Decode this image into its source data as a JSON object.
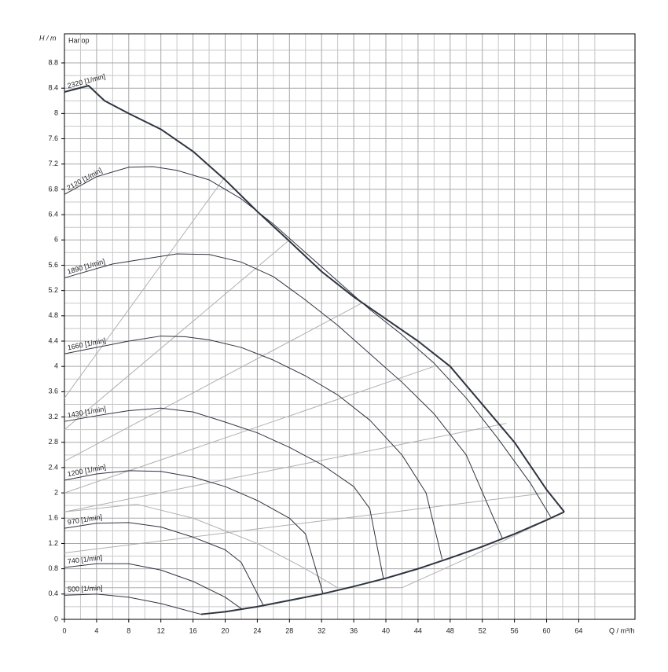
{
  "chart_data": {
    "type": "line",
    "y_label": "H / m",
    "plot_label": "Hanop",
    "x_label": "Q / m³/h",
    "xlim": [
      0,
      71
    ],
    "ylim": [
      0,
      9.26
    ],
    "xticks": [
      0,
      4,
      8,
      12,
      16,
      20,
      24,
      28,
      32,
      36,
      40,
      44,
      48,
      52,
      56,
      60,
      64
    ],
    "yticks": [
      0,
      0.4,
      0.8,
      1.2,
      1.6,
      2,
      2.4,
      2.8,
      3.2,
      3.6,
      4,
      4.4,
      4.8,
      5.2,
      5.6,
      6,
      6.4,
      6.8,
      7.2,
      7.6,
      8,
      8.4,
      8.8
    ],
    "grid": true,
    "series": [
      {
        "name": "2320 [1/min]",
        "color": "#2e3440",
        "width": 2,
        "x": [
          0,
          3,
          5,
          8,
          12,
          16,
          20,
          24,
          28,
          32,
          36,
          40,
          44,
          48,
          52,
          56,
          60,
          62.2
        ],
        "values": [
          8.34,
          8.44,
          8.2,
          8.0,
          7.75,
          7.4,
          6.95,
          6.45,
          5.98,
          5.5,
          5.1,
          4.75,
          4.4,
          4.0,
          3.4,
          2.8,
          2.05,
          1.7
        ]
      },
      {
        "name": "2120 [1/min]",
        "color": "#2e3440",
        "width": 1,
        "x": [
          0,
          4,
          8,
          11,
          14,
          18,
          22,
          26,
          30,
          34,
          38,
          42,
          46,
          50,
          54,
          58,
          60.5
        ],
        "values": [
          6.72,
          7.0,
          7.15,
          7.16,
          7.1,
          6.95,
          6.65,
          6.25,
          5.8,
          5.35,
          4.9,
          4.5,
          4.05,
          3.5,
          2.85,
          2.15,
          1.62
        ]
      },
      {
        "name": "1890 [1/min]",
        "color": "#2e3440",
        "width": 1,
        "x": [
          0,
          6,
          10,
          14,
          18,
          22,
          26,
          30,
          34,
          38,
          42,
          46,
          50,
          54.5
        ],
        "values": [
          5.4,
          5.62,
          5.7,
          5.78,
          5.77,
          5.65,
          5.42,
          5.05,
          4.65,
          4.2,
          3.75,
          3.25,
          2.6,
          1.28
        ]
      },
      {
        "name": "1660 [1/min]",
        "color": "#2e3440",
        "width": 1,
        "x": [
          0,
          4,
          8,
          12,
          15,
          18,
          22,
          26,
          30,
          34,
          38,
          42,
          45,
          47
        ],
        "values": [
          4.2,
          4.3,
          4.4,
          4.48,
          4.47,
          4.42,
          4.3,
          4.1,
          3.85,
          3.55,
          3.15,
          2.6,
          2.0,
          0.95
        ]
      },
      {
        "name": "1430 [1/min]",
        "color": "#2e3440",
        "width": 1,
        "x": [
          0,
          4,
          8,
          12,
          16,
          20,
          24,
          28,
          32,
          36,
          38,
          39.7
        ],
        "values": [
          3.13,
          3.22,
          3.3,
          3.34,
          3.28,
          3.12,
          2.95,
          2.72,
          2.45,
          2.1,
          1.75,
          0.64
        ]
      },
      {
        "name": "1200 [1/min]",
        "color": "#2e3440",
        "width": 1,
        "x": [
          0,
          4,
          8,
          12,
          16,
          20,
          24,
          28,
          30,
          32.2
        ],
        "values": [
          2.2,
          2.3,
          2.35,
          2.34,
          2.25,
          2.1,
          1.88,
          1.6,
          1.35,
          0.4
        ]
      },
      {
        "name": "970 [1/min]",
        "color": "#2e3440",
        "width": 1,
        "x": [
          0,
          4,
          8,
          12,
          16,
          20,
          22,
          24.8
        ],
        "values": [
          1.44,
          1.52,
          1.53,
          1.46,
          1.3,
          1.1,
          0.9,
          0.21
        ]
      },
      {
        "name": "740 [1/min]",
        "color": "#2e3440",
        "width": 1,
        "x": [
          0,
          4,
          8,
          12,
          16,
          20,
          22
        ],
        "values": [
          0.82,
          0.88,
          0.88,
          0.78,
          0.6,
          0.35,
          0.17
        ]
      },
      {
        "name": "500 [1/min]",
        "color": "#2e3440",
        "width": 1,
        "x": [
          0,
          4,
          8,
          12,
          17
        ],
        "values": [
          0.38,
          0.4,
          0.35,
          0.25,
          0.08
        ]
      },
      {
        "color": "#2e3440",
        "width": 2,
        "x": [
          17,
          20,
          24,
          28,
          32,
          36,
          40,
          44,
          48,
          52,
          56,
          60,
          62.2
        ],
        "values": [
          0.08,
          0.12,
          0.2,
          0.3,
          0.4,
          0.52,
          0.65,
          0.8,
          0.97,
          1.15,
          1.35,
          1.57,
          1.7
        ]
      },
      {
        "color": "#b0b0b0",
        "width": 1,
        "x": [
          0,
          20
        ],
        "values": [
          3.5,
          7.0
        ]
      },
      {
        "color": "#b0b0b0",
        "width": 1,
        "x": [
          0,
          28
        ],
        "values": [
          3.0,
          6.0
        ]
      },
      {
        "color": "#b0b0b0",
        "width": 1,
        "x": [
          0,
          37
        ],
        "values": [
          2.5,
          5.0
        ]
      },
      {
        "color": "#b0b0b0",
        "width": 1,
        "x": [
          0,
          46
        ],
        "values": [
          2.0,
          4.0
        ]
      },
      {
        "color": "#b0b0b0",
        "width": 1,
        "x": [
          0,
          55
        ],
        "values": [
          1.7,
          3.1
        ]
      },
      {
        "color": "#b0b0b0",
        "width": 1,
        "x": [
          0,
          60
        ],
        "values": [
          1.05,
          2.0
        ]
      },
      {
        "color": "#b0b0b0",
        "width": 1,
        "x": [
          0,
          9,
          16,
          24,
          30,
          34
        ],
        "values": [
          1.7,
          1.82,
          1.6,
          1.2,
          0.8,
          0.5
        ]
      },
      {
        "color": "#b0b0b0",
        "width": 1,
        "x": [
          0,
          42,
          49,
          62.2
        ],
        "values": [
          0.5,
          0.5,
          0.9,
          1.7
        ]
      }
    ]
  }
}
